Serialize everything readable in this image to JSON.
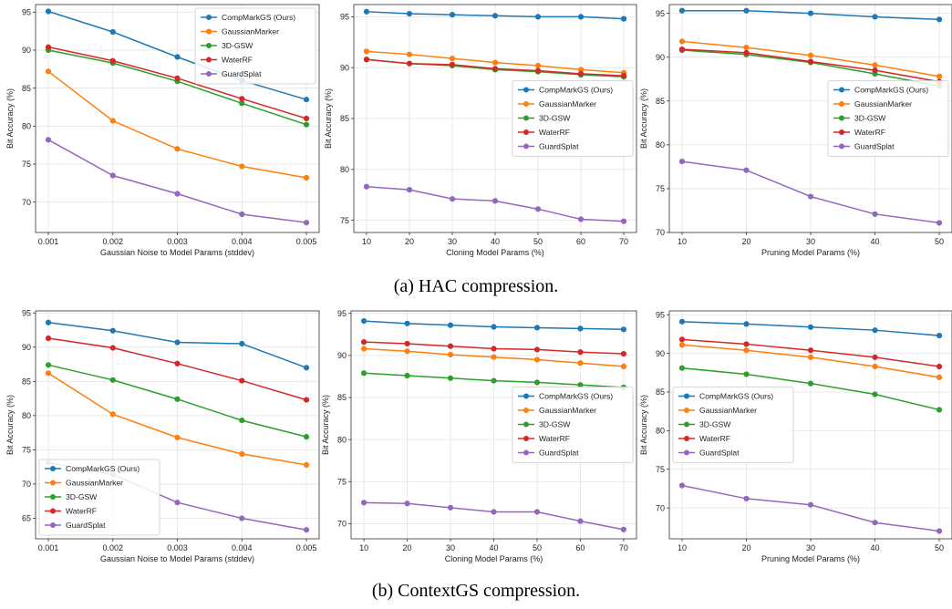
{
  "captions": {
    "a": "(a) HAC compression.",
    "b": "(b) ContextGS compression."
  },
  "series_colors": {
    "CompMarkGS (Ours)": "#1f77b4",
    "GaussianMarker": "#ff7f0e",
    "3D-GSW": "#2ca02c",
    "WaterRF": "#d62728",
    "GuardSplat": "#9467bd"
  },
  "chart_data": [
    {
      "type": "line",
      "group": "HAC compression",
      "xlabel": "Gaussian Noise to Model Params (stddev)",
      "ylabel": "Bit Accuracy (%)",
      "x": [
        0.001,
        0.002,
        0.003,
        0.004,
        0.005
      ],
      "x_ticks": [
        "0.001",
        "0.002",
        "0.003",
        "0.004",
        "0.005"
      ],
      "ylim": [
        66.0,
        96.0
      ],
      "y_ticks": [
        70,
        75,
        80,
        85,
        90,
        95
      ],
      "grid": true,
      "legend": "upper right",
      "series": [
        {
          "name": "CompMarkGS (Ours)",
          "values": [
            95.1,
            92.4,
            89.1,
            86.0,
            83.5
          ]
        },
        {
          "name": "GaussianMarker",
          "values": [
            87.2,
            80.7,
            77.0,
            74.7,
            73.2
          ]
        },
        {
          "name": "3D-GSW",
          "values": [
            90.0,
            88.3,
            85.9,
            83.0,
            80.2
          ]
        },
        {
          "name": "WaterRF",
          "values": [
            90.4,
            88.6,
            86.3,
            83.6,
            81.0
          ]
        },
        {
          "name": "GuardSplat",
          "values": [
            78.2,
            73.5,
            71.1,
            68.4,
            67.3
          ]
        }
      ]
    },
    {
      "type": "line",
      "group": "HAC compression",
      "xlabel": "Cloning Model Params (%)",
      "ylabel": "Bit Accuracy (%)",
      "x": [
        10,
        20,
        30,
        40,
        50,
        60,
        70
      ],
      "x_ticks": [
        "10",
        "20",
        "30",
        "40",
        "50",
        "60",
        "70"
      ],
      "ylim": [
        73.8,
        96.2
      ],
      "y_ticks": [
        75,
        80,
        85,
        90,
        95
      ],
      "grid": true,
      "legend": "center right",
      "series": [
        {
          "name": "CompMarkGS (Ours)",
          "values": [
            95.5,
            95.3,
            95.2,
            95.1,
            95.0,
            95.0,
            94.8
          ]
        },
        {
          "name": "GaussianMarker",
          "values": [
            91.6,
            91.3,
            90.9,
            90.5,
            90.2,
            89.8,
            89.5
          ]
        },
        {
          "name": "3D-GSW",
          "values": [
            90.8,
            90.4,
            90.2,
            89.8,
            89.6,
            89.3,
            89.1
          ]
        },
        {
          "name": "WaterRF",
          "values": [
            90.8,
            90.4,
            90.3,
            89.9,
            89.7,
            89.4,
            89.2
          ]
        },
        {
          "name": "GuardSplat",
          "values": [
            78.3,
            78.0,
            77.1,
            76.9,
            76.1,
            75.1,
            74.9
          ]
        }
      ]
    },
    {
      "type": "line",
      "group": "HAC compression",
      "xlabel": "Pruning Model Params (%)",
      "ylabel": "Bit Accuracy (%)",
      "x": [
        10,
        20,
        30,
        40,
        50
      ],
      "x_ticks": [
        "10",
        "20",
        "30",
        "40",
        "50"
      ],
      "ylim": [
        70.0,
        96.0
      ],
      "y_ticks": [
        70,
        75,
        80,
        85,
        90,
        95
      ],
      "grid": true,
      "legend": "center right",
      "series": [
        {
          "name": "CompMarkGS (Ours)",
          "values": [
            95.3,
            95.3,
            95.0,
            94.6,
            94.3
          ]
        },
        {
          "name": "GaussianMarker",
          "values": [
            91.8,
            91.1,
            90.2,
            89.1,
            87.8
          ]
        },
        {
          "name": "3D-GSW",
          "values": [
            90.8,
            90.3,
            89.4,
            88.1,
            86.7
          ]
        },
        {
          "name": "WaterRF",
          "values": [
            90.9,
            90.5,
            89.5,
            88.5,
            87.2
          ]
        },
        {
          "name": "GuardSplat",
          "values": [
            78.1,
            77.1,
            74.1,
            72.1,
            71.1
          ]
        }
      ]
    },
    {
      "type": "line",
      "group": "ContextGS compression",
      "xlabel": "Gaussian Noise to Model Params (stddev)",
      "ylabel": "Bit Accuracy (%)",
      "x": [
        0.001,
        0.002,
        0.003,
        0.004,
        0.005
      ],
      "x_ticks": [
        "0.001",
        "0.002",
        "0.003",
        "0.004",
        "0.005"
      ],
      "ylim": [
        62.0,
        95.3
      ],
      "y_ticks": [
        65,
        70,
        75,
        80,
        85,
        90,
        95
      ],
      "grid": true,
      "legend": "lower left",
      "series": [
        {
          "name": "CompMarkGS (Ours)",
          "values": [
            93.6,
            92.4,
            90.7,
            90.5,
            87.0
          ]
        },
        {
          "name": "GaussianMarker",
          "values": [
            86.2,
            80.2,
            76.8,
            74.4,
            72.8
          ]
        },
        {
          "name": "3D-GSW",
          "values": [
            87.4,
            85.2,
            82.4,
            79.3,
            76.9
          ]
        },
        {
          "name": "WaterRF",
          "values": [
            91.3,
            89.9,
            87.6,
            85.1,
            82.3
          ]
        },
        {
          "name": "GuardSplat",
          "values": [
            73.1,
            71.4,
            67.3,
            65.0,
            63.3
          ]
        }
      ]
    },
    {
      "type": "line",
      "group": "ContextGS compression",
      "xlabel": "Cloning Model Params (%)",
      "ylabel": "Bit Accuracy (%)",
      "x": [
        10,
        20,
        30,
        40,
        50,
        60,
        70
      ],
      "x_ticks": [
        "10",
        "20",
        "30",
        "40",
        "50",
        "60",
        "70"
      ],
      "ylim": [
        68.2,
        95.3
      ],
      "y_ticks": [
        70,
        75,
        80,
        85,
        90,
        95
      ],
      "grid": true,
      "legend": "center right",
      "series": [
        {
          "name": "CompMarkGS (Ours)",
          "values": [
            94.1,
            93.8,
            93.6,
            93.4,
            93.3,
            93.2,
            93.1
          ]
        },
        {
          "name": "GaussianMarker",
          "values": [
            90.8,
            90.5,
            90.1,
            89.8,
            89.5,
            89.1,
            88.7
          ]
        },
        {
          "name": "3D-GSW",
          "values": [
            87.9,
            87.6,
            87.3,
            87.0,
            86.8,
            86.5,
            86.2
          ]
        },
        {
          "name": "WaterRF",
          "values": [
            91.6,
            91.4,
            91.1,
            90.8,
            90.7,
            90.4,
            90.2
          ]
        },
        {
          "name": "GuardSplat",
          "values": [
            72.5,
            72.4,
            71.9,
            71.4,
            71.4,
            70.3,
            69.3
          ]
        }
      ]
    },
    {
      "type": "line",
      "group": "ContextGS compression",
      "xlabel": "Pruning Model Params (%)",
      "ylabel": "Bit Accuracy (%)",
      "x": [
        10,
        20,
        30,
        40,
        50
      ],
      "x_ticks": [
        "10",
        "20",
        "30",
        "40",
        "50"
      ],
      "ylim": [
        66.0,
        95.5
      ],
      "y_ticks": [
        70,
        75,
        80,
        85,
        90,
        95
      ],
      "grid": true,
      "legend": "center left",
      "series": [
        {
          "name": "CompMarkGS (Ours)",
          "values": [
            94.1,
            93.8,
            93.4,
            93.0,
            92.3
          ]
        },
        {
          "name": "GaussianMarker",
          "values": [
            91.1,
            90.4,
            89.5,
            88.3,
            86.9
          ]
        },
        {
          "name": "3D-GSW",
          "values": [
            88.1,
            87.3,
            86.1,
            84.7,
            82.7
          ]
        },
        {
          "name": "WaterRF",
          "values": [
            91.8,
            91.2,
            90.4,
            89.5,
            88.3
          ]
        },
        {
          "name": "GuardSplat",
          "values": [
            72.9,
            71.2,
            70.4,
            68.1,
            67.0
          ]
        }
      ]
    }
  ]
}
